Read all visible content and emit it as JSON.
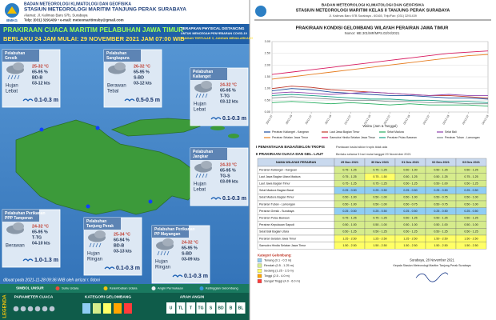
{
  "left": {
    "logo": "BMKG",
    "org": "BADAN METEOROLOGI KLIMATOLOGI DAN GEOFISIKA",
    "station": "STASIUN METEOROLOGI MARITIM TANJUNG PERAK SURABAYA",
    "address": "Alamat: Jl. Kalimas Baru 97b, Surabaya",
    "contact": "Telp: (031) 3291439 • e-mail: meteomaritimsby@gmail.com",
    "title": "PRAKIRAAN CUACA MARITIM PELABUHAN JAWA TIMUR",
    "subtitle": "BERLAKU 24 JAM MULAI: 29 NOVEMBER 2021 JAM 07:00 WIB",
    "notice": [
      "TERAPKAN PHYSICAL DISTANCING",
      "UNTUK MENCEGAH PENYEBARAN COVID-19",
      "JANGAN TERTULAR !!, JANGAN MENULARKAN!!"
    ],
    "ports": [
      {
        "name": [
          "Pelabuhan",
          "Gresik"
        ],
        "weather": [
          "Hujan",
          "Lebat"
        ],
        "temp": "25-32 °C",
        "humidity": "65-95 %",
        "wind_dir": "BD-B",
        "wind_speed": "03-12 kts",
        "wave": "0.1-0.3 m"
      },
      {
        "name": [
          "Pelabuhan",
          "Sangkapura"
        ],
        "weather": [
          "Berawan",
          "Tebal"
        ],
        "temp": "26-32 °C",
        "humidity": "65-95 %",
        "wind_dir": "S-BD",
        "wind_speed": "03-12 kts",
        "wave": "0.5-0.5 m"
      },
      {
        "name": [
          "Pelabuhan",
          "Kalianget"
        ],
        "weather": [
          "Hujan",
          "Lebat"
        ],
        "temp": "24-32 °C",
        "humidity": "65-95 %",
        "wind_dir": "T-TG",
        "wind_speed": "03-12 kts",
        "wave": "0.1-0.3 m"
      },
      {
        "name": [
          "Pelabuhan",
          "Jangkar"
        ],
        "weather": [
          "Hujan",
          "Lebat"
        ],
        "temp": "24-33 °C",
        "humidity": "65-95 %",
        "wind_dir": "TG-S",
        "wind_speed": "03-09 kts",
        "wave": "0.1-0.3 m"
      },
      {
        "name": [
          "Pelabuhan Perikanan",
          "PPP Tamperan"
        ],
        "weather": [
          "Berawan",
          ""
        ],
        "temp": "24-32 °C",
        "humidity": "65-95 %",
        "wind_dir": "T-TG",
        "wind_speed": "04-10 kts",
        "wave": "1.0-1.3 m"
      },
      {
        "name": [
          "Pelabuhan",
          "Tanjung Perak"
        ],
        "weather": [
          "Hujan",
          "Ringan"
        ],
        "temp": "25-34 °C",
        "humidity": "60-94 %",
        "wind_dir": "BD-B",
        "wind_speed": "03-13 kts",
        "wave": "0.1-0.3 m"
      },
      {
        "name": [
          "Pelabuhan Perikanan",
          "PP Mayangan"
        ],
        "weather": [
          "Hujan",
          "Ringan"
        ],
        "temp": "24-32 °C",
        "humidity": "65-95 %",
        "wind_dir": "S-BD",
        "wind_speed": "03-09 kts",
        "wave": "0.1-0.3 m"
      }
    ],
    "made": "dibuat pada 2021-11-28 09:36 WIB oleh arrizal r. fidoni",
    "legend_title": "LEGENDA",
    "symbols_title": "SIMBOL UNSUR",
    "symbols": [
      "Suhu Udara",
      "Kelembaban Udara",
      "Angin Permukaan",
      "Ketinggian Gelombang"
    ],
    "sections": [
      "PARAMETER CUACA",
      "KATEGORI GELOMBANG",
      "ARAH ANGIN"
    ],
    "wind_dirs": [
      "U",
      "TL",
      "T",
      "TG",
      "S",
      "BD",
      "B",
      "BL"
    ]
  },
  "right": {
    "org": "BADAN METEOROLOGI KLIMATOLOGI DAN GEOFISIKA",
    "station": "STASIUN METEOROLOGI MARITIM KELAS II TANJUNG PERAK SURABAYA",
    "address": "Jl. Kalimas Baru 97B Surabaya - 60165, Telp/Fax: (031) 3291439",
    "section1": "I    PEMANTAUAN BADAI/SIKLON TROPIS",
    "section1_text": "Pantauan badai siklon tropis tidak ada",
    "section2": "II   PRAKIRAAN CUACA DAN GEL. LAUT",
    "section2_text": "Berlaku selama 5 hari mulai tanggal 29 November 2021",
    "table_header": [
      "NAMA WILAYAH PERAIRAN",
      "29 Nov 2021",
      "30 Nov 2021",
      "01 Des 2021",
      "02 Des 2021",
      "03 Des 2021"
    ],
    "table_rows": [
      {
        "name": "Perairan Kalianget - Kangean",
        "values": [
          "0.75 - 1.25",
          "0.75 - 1.25",
          "0.50 - 1.00",
          "0.50 - 1.25",
          "0.50 - 1.25"
        ]
      },
      {
        "name": "Laut Jawa Bagian Utara Madura",
        "values": [
          "0.75 - 1.25",
          "0.75 - 1.50",
          "0.50 - 1.25",
          "0.50 - 1.25",
          "0.75 - 1.25"
        ]
      },
      {
        "name": "Laut Jawa Bagian Timur",
        "values": [
          "0.75 - 1.25",
          "0.75 - 1.25",
          "0.50 - 1.25",
          "0.50 - 1.00",
          "0.50 - 1.25"
        ]
      },
      {
        "name": "Selat Madura Bagian Barat",
        "values": [
          "0.25 - 0.50",
          "0.25 - 0.50",
          "0.25 - 0.50",
          "0.25 - 0.50",
          "0.25 - 0.50"
        ]
      },
      {
        "name": "Selat Madura Bagian Timur",
        "values": [
          "0.50 - 1.00",
          "0.50 - 1.00",
          "0.50 - 1.00",
          "0.50 - 0.75",
          "0.50 - 1.00"
        ]
      },
      {
        "name": "Perairan Tuban - Lamongan",
        "values": [
          "0.50 - 1.00",
          "0.50 - 1.00",
          "0.50 - 0.75",
          "0.50 - 0.75",
          "0.50 - 1.00"
        ]
      },
      {
        "name": "Perairan Gresik - Surabaya",
        "values": [
          "0.25 - 0.50",
          "0.25 - 0.50",
          "0.25 - 0.50",
          "0.25 - 0.50",
          "0.25 - 0.50"
        ]
      },
      {
        "name": "Perairan Pulau Bawean",
        "values": [
          "0.75 - 1.25",
          "0.75 - 1.25",
          "0.50 - 1.25",
          "0.50 - 1.25",
          "0.50 - 1.25"
        ]
      },
      {
        "name": "Perairan Kepulauan Sapudi",
        "values": [
          "0.50 - 1.00",
          "0.50 - 1.00",
          "0.50 - 1.00",
          "0.50 - 1.00",
          "0.50 - 1.00"
        ]
      },
      {
        "name": "Selat Bali Bagian Utara",
        "values": [
          "0.50 - 1.25",
          "0.50 - 1.25",
          "0.50 - 1.25",
          "0.50 - 1.25",
          "0.50 - 1.25"
        ]
      },
      {
        "name": "Perairan Selatan Jawa Timur",
        "values": [
          "1.25 - 2.50",
          "1.25 - 2.50",
          "1.25 - 2.50",
          "1.50 - 2.50",
          "1.50 - 2.50"
        ]
      },
      {
        "name": "Samudra Hindia Selatan Jawa Timur",
        "values": [
          "1.50 - 2.50",
          "1.50 - 2.50",
          "1.50 - 2.50",
          "1.50 - 2.50",
          "1.50 - 2.50"
        ]
      }
    ],
    "categories_title": "Kategori Gelombang:",
    "categories": [
      {
        "label": "Tenang (0.1 - 0.5 m)",
        "color": "#8fcdf4"
      },
      {
        "label": "Rendah (0.5 - 1.25 m)",
        "color": "#d6ec8c"
      },
      {
        "label": "Sedang (1.25 - 2.5 m)",
        "color": "#ffff66"
      },
      {
        "label": "Tinggi (2.5 - 4.0 m)",
        "color": "#ffa500"
      },
      {
        "label": "Sangat Tinggi (4.0 - 6.0 m)",
        "color": "#ff3b3b"
      }
    ],
    "sign_date": "Surabaya, 28 November 2021",
    "sign_title": "Kepala Stasiun Meteorologi Maritim Tanjung Perak Surabaya"
  },
  "chart_data": {
    "type": "line",
    "title": "PRAKIRAAN KONDISI GELOMBANG WILAYAH PERAIRAN JAWA TIMUR",
    "subtitle": "Nomor: ME.301/MR/MPS.03/XI/2021",
    "x_label": "Waktu (Jam & Tanggal)",
    "categories": [
      "29/11 07",
      "29/11 19",
      "30/11 07",
      "30/11 19",
      "01/12 07",
      "01/12 19",
      "02/12 07",
      "02/12 19",
      "03/12 07",
      "03/12 19",
      "04/12 07",
      "04/12 19"
    ],
    "ylim": [
      0,
      3
    ],
    "yticks": [
      {
        "value": 0,
        "label": "0.00"
      },
      {
        "value": 0.5,
        "label": "0.50"
      },
      {
        "value": 1,
        "label": "1.00"
      },
      {
        "value": 1.5,
        "label": "1.50"
      },
      {
        "value": 2,
        "label": "2.00"
      },
      {
        "value": 2.5,
        "label": "2.50"
      },
      {
        "value": 3,
        "label": "3.00"
      }
    ],
    "grid": true,
    "series": [
      {
        "name": "Perairan Kalianget - Kangean",
        "color": "#1f4e9c",
        "values": [
          0.9,
          1.0,
          0.95,
          0.85,
          0.8,
          0.75,
          0.7,
          0.7,
          0.65,
          0.6,
          0.6,
          0.55
        ]
      },
      {
        "name": "Laut Jawa Bagian Timur",
        "color": "#c0392b",
        "values": [
          1.0,
          1.1,
          1.05,
          0.95,
          0.9,
          0.85,
          0.8,
          0.75,
          0.7,
          0.7,
          0.65,
          0.6
        ]
      },
      {
        "name": "Selat Madura",
        "color": "#27ae60",
        "values": [
          0.4,
          0.45,
          0.4,
          0.35,
          0.4,
          0.35,
          0.3,
          0.35,
          0.3,
          0.3,
          0.3,
          0.25
        ]
      },
      {
        "name": "Selat Bali",
        "color": "#8e44ad",
        "values": [
          0.8,
          0.85,
          0.8,
          0.75,
          0.8,
          0.85,
          0.8,
          0.75,
          0.7,
          0.75,
          0.7,
          0.7
        ]
      },
      {
        "name": "Perairan Selatan Jawa Timur",
        "color": "#e67e22",
        "values": [
          1.4,
          1.5,
          1.6,
          1.7,
          1.8,
          1.9,
          2.0,
          2.1,
          2.2,
          2.3,
          2.4,
          2.45
        ]
      },
      {
        "name": "Samudra Hindia Selatan Jawa Timur",
        "color": "#d81b60",
        "values": [
          1.6,
          1.7,
          1.8,
          1.9,
          2.0,
          2.1,
          2.2,
          2.3,
          2.4,
          2.5,
          2.55,
          2.6
        ]
      },
      {
        "name": "Perairan Pulau Bawean",
        "color": "#16a085",
        "values": [
          0.7,
          0.75,
          0.7,
          0.65,
          0.6,
          0.55,
          0.55,
          0.5,
          0.5,
          0.45,
          0.45,
          0.4
        ]
      },
      {
        "name": "Perairan Tuban - Lamongan",
        "color": "#7f8c8d",
        "values": [
          0.6,
          0.65,
          0.6,
          0.55,
          0.5,
          0.5,
          0.45,
          0.45,
          0.4,
          0.4,
          0.35,
          0.35
        ]
      }
    ]
  }
}
